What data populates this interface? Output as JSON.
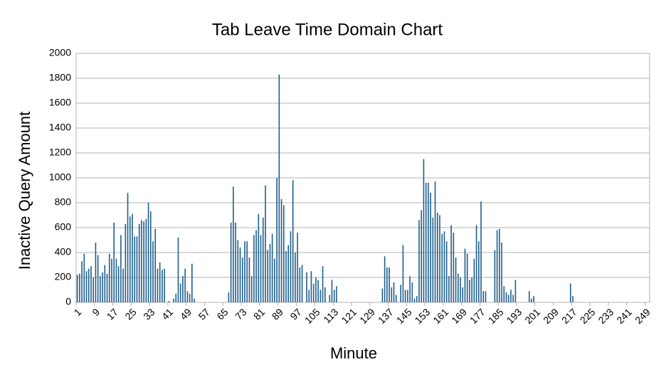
{
  "chart_data": {
    "type": "bar",
    "title": "Tab Leave Time Domain Chart",
    "x_label": "Minute",
    "y_label": "Inactive Query Amount",
    "color": "#1f5f8e",
    "grid": true,
    "ylim": [
      0,
      2000
    ],
    "yticks": [
      0,
      200,
      400,
      600,
      800,
      1000,
      1200,
      1400,
      1600,
      1800,
      2000
    ],
    "categories": [
      "1",
      null,
      null,
      null,
      null,
      null,
      null,
      null,
      "9",
      null,
      null,
      null,
      null,
      null,
      null,
      null,
      "17",
      null,
      null,
      null,
      null,
      null,
      null,
      null,
      "25",
      null,
      null,
      null,
      null,
      null,
      null,
      null,
      "33",
      null,
      null,
      null,
      null,
      null,
      null,
      null,
      "41",
      null,
      null,
      null,
      null,
      null,
      null,
      null,
      "49",
      null,
      null,
      null,
      null,
      null,
      null,
      null,
      "57",
      null,
      null,
      null,
      null,
      null,
      null,
      null,
      "65",
      null,
      null,
      null,
      null,
      null,
      null,
      null,
      "73",
      null,
      null,
      null,
      null,
      null,
      null,
      null,
      "81",
      null,
      null,
      null,
      null,
      null,
      null,
      null,
      "89",
      null,
      null,
      null,
      null,
      null,
      null,
      null,
      "97",
      null,
      null,
      null,
      null,
      null,
      null,
      null,
      "105",
      null,
      null,
      null,
      null,
      null,
      null,
      null,
      "113",
      null,
      null,
      null,
      null,
      null,
      null,
      null,
      "121",
      null,
      null,
      null,
      null,
      null,
      null,
      null,
      "129",
      null,
      null,
      null,
      null,
      null,
      null,
      null,
      "137",
      null,
      null,
      null,
      null,
      null,
      null,
      null,
      "145",
      null,
      null,
      null,
      null,
      null,
      null,
      null,
      "153",
      null,
      null,
      null,
      null,
      null,
      null,
      null,
      "161",
      null,
      null,
      null,
      null,
      null,
      null,
      null,
      "169",
      null,
      null,
      null,
      null,
      null,
      null,
      null,
      "177",
      null,
      null,
      null,
      null,
      null,
      null,
      null,
      "185",
      null,
      null,
      null,
      null,
      null,
      null,
      null,
      "193",
      null,
      null,
      null,
      null,
      null,
      null,
      null,
      "201",
      null,
      null,
      null,
      null,
      null,
      null,
      null,
      "209",
      null,
      null,
      null,
      null,
      null,
      null,
      null,
      "217",
      null,
      null,
      null,
      null,
      null,
      null,
      null,
      "225",
      null,
      null,
      null,
      null,
      null,
      null,
      null,
      "233",
      null,
      null,
      null,
      null,
      null,
      null,
      null,
      "241",
      null,
      null,
      null,
      null,
      null,
      null,
      null,
      "249",
      null
    ],
    "values": [
      220,
      230,
      330,
      390,
      250,
      270,
      290,
      200,
      480,
      380,
      210,
      240,
      300,
      230,
      390,
      350,
      640,
      350,
      290,
      540,
      270,
      630,
      880,
      690,
      710,
      530,
      530,
      630,
      660,
      650,
      670,
      800,
      730,
      490,
      590,
      270,
      320,
      260,
      270,
      0,
      10,
      0,
      30,
      70,
      520,
      150,
      210,
      270,
      90,
      70,
      310,
      30,
      0,
      0,
      0,
      0,
      0,
      0,
      0,
      0,
      0,
      0,
      0,
      0,
      0,
      0,
      80,
      640,
      930,
      640,
      500,
      440,
      360,
      490,
      490,
      360,
      210,
      540,
      580,
      710,
      540,
      680,
      940,
      420,
      470,
      550,
      350,
      1000,
      1830,
      830,
      780,
      410,
      460,
      570,
      980,
      400,
      560,
      280,
      300,
      0,
      240,
      100,
      250,
      150,
      200,
      180,
      100,
      290,
      120,
      0,
      60,
      180,
      100,
      130,
      0,
      0,
      0,
      0,
      0,
      0,
      0,
      0,
      0,
      0,
      0,
      0,
      0,
      0,
      0,
      0,
      0,
      0,
      0,
      110,
      370,
      280,
      280,
      120,
      160,
      60,
      0,
      140,
      460,
      100,
      100,
      210,
      160,
      30,
      50,
      660,
      740,
      1150,
      960,
      960,
      880,
      680,
      970,
      720,
      700,
      550,
      570,
      490,
      210,
      620,
      560,
      360,
      230,
      200,
      120,
      430,
      390,
      180,
      200,
      350,
      620,
      490,
      810,
      90,
      90,
      0,
      0,
      0,
      420,
      580,
      590,
      480,
      130,
      80,
      60,
      100,
      60,
      180,
      0,
      0,
      0,
      0,
      0,
      90,
      30,
      50,
      0,
      0,
      0,
      0,
      0,
      0,
      0,
      0,
      0,
      0,
      0,
      0,
      0,
      0,
      0,
      150,
      50,
      0,
      0,
      0,
      0,
      0,
      0,
      0,
      0,
      0,
      0,
      0,
      0,
      0,
      0,
      0,
      0,
      0,
      0,
      0,
      0,
      0,
      0,
      0,
      0,
      0,
      0,
      0,
      0,
      0,
      0,
      0,
      0,
      0
    ]
  }
}
